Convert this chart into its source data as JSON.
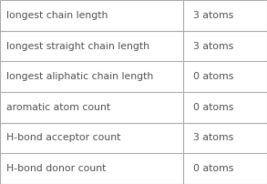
{
  "rows": [
    [
      "longest chain length",
      "3 atoms"
    ],
    [
      "longest straight chain length",
      "3 atoms"
    ],
    [
      "longest aliphatic chain length",
      "0 atoms"
    ],
    [
      "aromatic atom count",
      "0 atoms"
    ],
    [
      "H-bond acceptor count",
      "3 atoms"
    ],
    [
      "H-bond donor count",
      "0 atoms"
    ]
  ],
  "col_split": 0.685,
  "background_color": "#ffffff",
  "border_color": "#aaaaaa",
  "text_color": "#505050",
  "font_size": 7.8,
  "fig_width": 2.93,
  "fig_height": 2.02,
  "dpi": 100
}
